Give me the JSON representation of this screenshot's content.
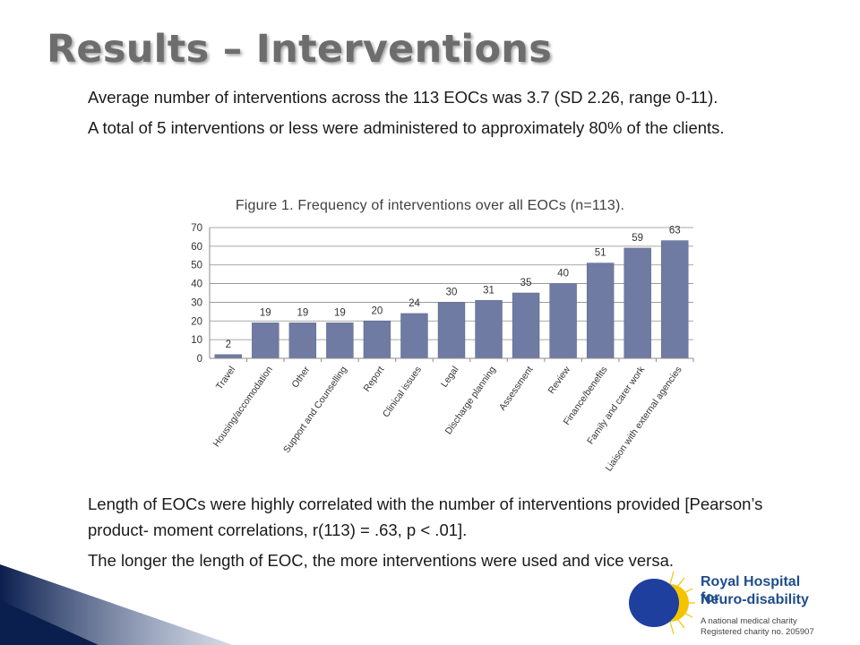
{
  "slide": {
    "title": "Results – Interventions",
    "bullet_mark": "",
    "bullets_top": [
      "Average number of interventions across the 113 EOCs was 3.7 (SD 2.26, range 0-11).",
      "A total of 5 interventions or less were administered to approximately 80% of the clients."
    ],
    "bullets_bottom": [
      "Length of EOCs were highly correlated with the number of interventions provided [Pearson’s product- moment correlations, r(113) = .63, p < .01].",
      "The longer the length of EOC, the more interventions were used and vice versa."
    ]
  },
  "chart_data": {
    "type": "bar",
    "title": "Figure 1. Frequency of interventions over all EOCs (n=113).",
    "categories": [
      "Travel",
      "Housing/accomodation",
      "Other",
      "Support and Counselling",
      "Report",
      "Clinical issues",
      "Legal",
      "Discharge planning",
      "Assessment",
      "Review",
      "Finance/benefits",
      "Family and carer work",
      "Liaison with external agencies"
    ],
    "values": [
      2,
      19,
      19,
      19,
      20,
      24,
      30,
      31,
      35,
      40,
      51,
      59,
      63
    ],
    "ylim": [
      0,
      70
    ],
    "yticks": [
      0,
      10,
      20,
      30,
      40,
      50,
      60,
      70
    ],
    "xlabel": "",
    "ylabel": "",
    "grid": true,
    "bar_color": "#6f7ba2",
    "data_labels": true
  },
  "logo": {
    "line1": "Royal Hospital for",
    "line2": "Neuro-disability",
    "line3": "A national medical charity",
    "line4": "Registered charity no. 205907",
    "colors": {
      "blue": "#1f3f9e",
      "yellow": "#f5c400",
      "text": "#1f4d8c"
    }
  },
  "theme": {
    "title_color": "#6d6d6d",
    "corner_dark": "#0b1f4f"
  }
}
